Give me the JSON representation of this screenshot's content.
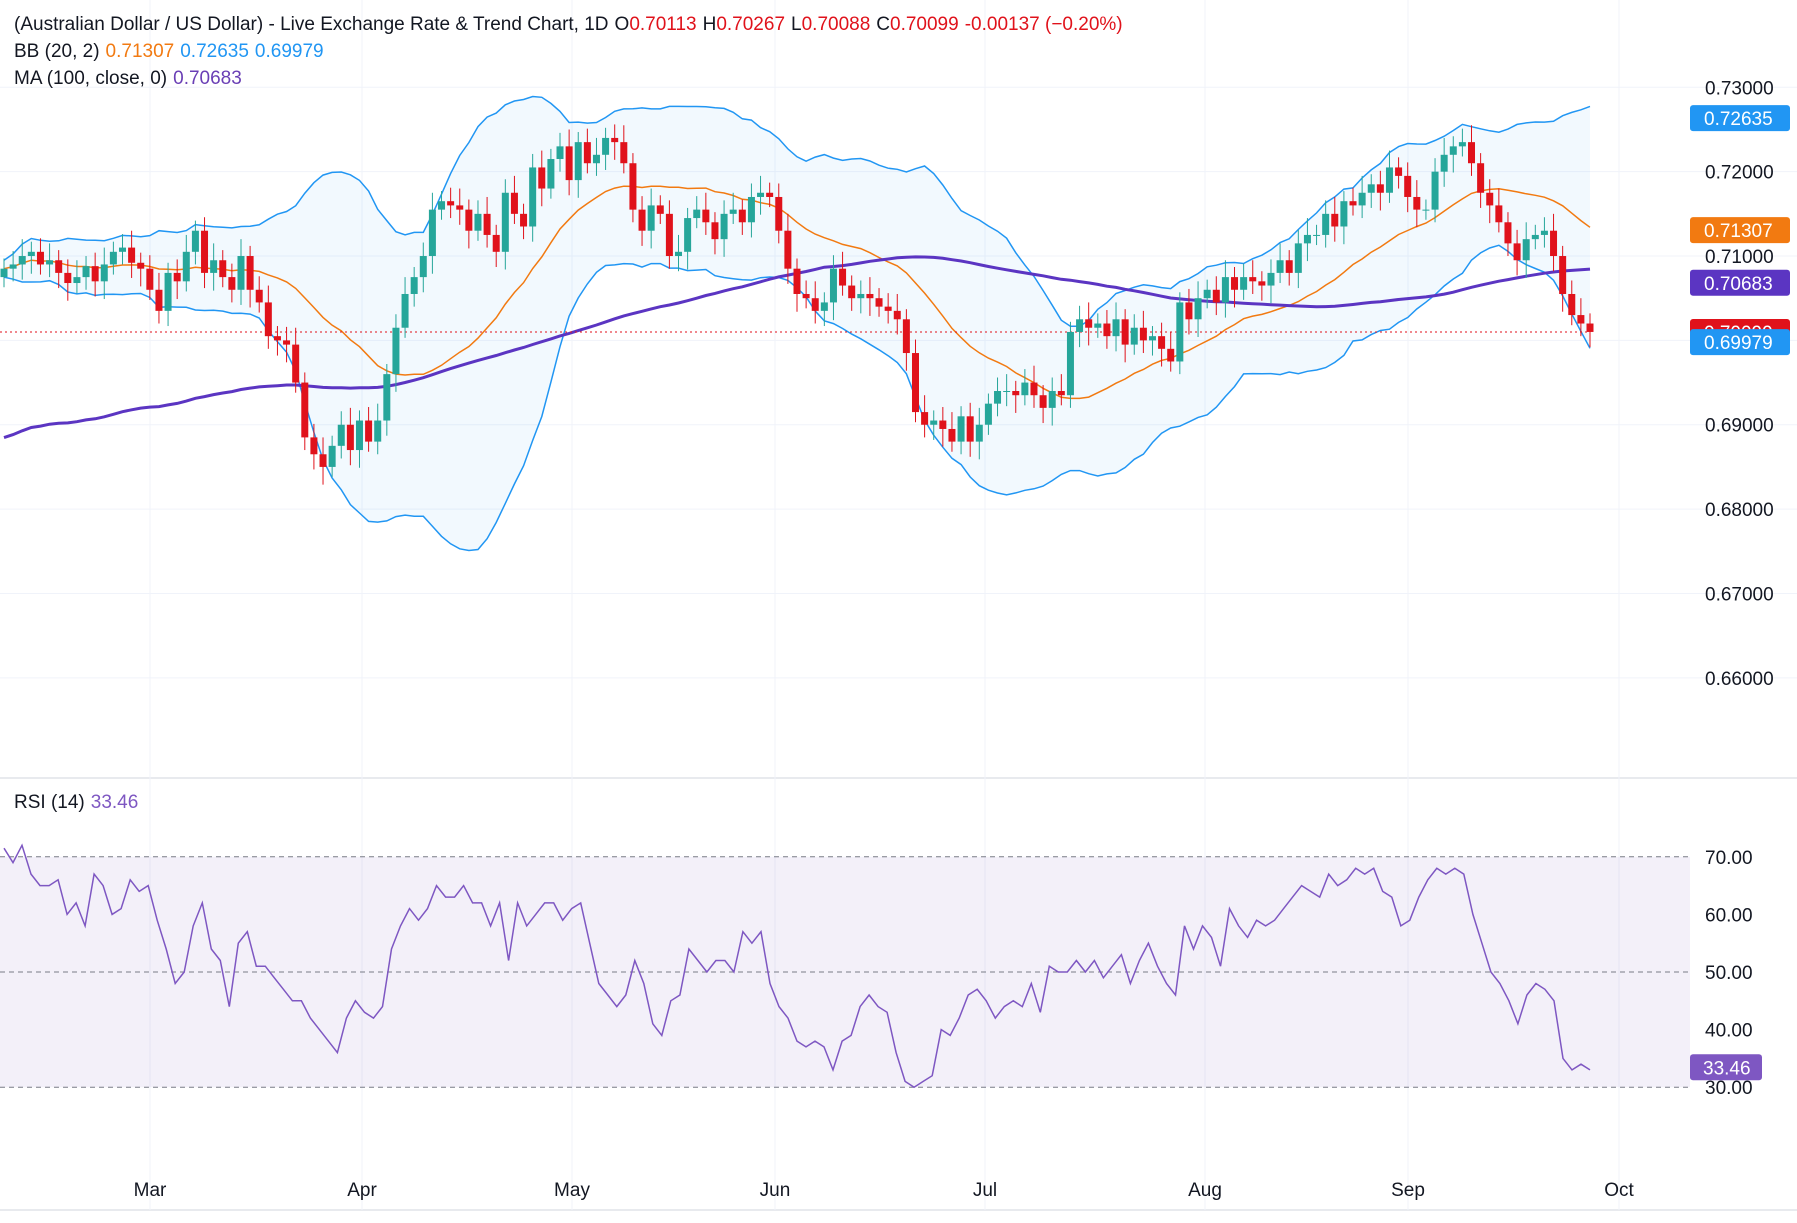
{
  "header": {
    "title": "(Australian Dollar / US Dollar) - Live Exchange Rate & Trend Chart, 1D",
    "open_label": "O",
    "open": "0.70113",
    "high_label": "H",
    "high": "0.70267",
    "low_label": "L",
    "low": "0.70088",
    "close_label": "C",
    "close": "0.70099",
    "change": "-0.00137 (−0.20%)",
    "bb_label": "BB (20, 2)",
    "bb_mid": "0.71307",
    "bb_upper": "0.72635",
    "bb_lower": "0.69979",
    "ma_label": "MA (100, close, 0)",
    "ma_value": "0.70683",
    "rsi_label": "RSI (14)",
    "rsi_value": "33.46"
  },
  "colors": {
    "up": "#26a69a",
    "down": "#e0121b",
    "bb_band": "#2196f3",
    "bb_basis": "#f27a11",
    "ma": "#5b35c2",
    "rsi": "#7e57c2",
    "last_price": "#e0121b"
  },
  "chart_data": [
    {
      "type": "candlestick",
      "title": "(Australian Dollar / US Dollar) - Live Exchange Rate & Trend Chart, 1D",
      "x_ticks": [
        "Mar",
        "Apr",
        "May",
        "Jun",
        "Jul",
        "Aug",
        "Sep",
        "Oct"
      ],
      "ylim": [
        0.655,
        0.733
      ],
      "y_ticks": [
        "0.73000",
        "0.72000",
        "0.71000",
        "0.70000",
        "0.69000",
        "0.68000",
        "0.67000",
        "0.66000"
      ],
      "badges": [
        {
          "label": "0.72635",
          "value": 0.72635,
          "color": "#2196f3"
        },
        {
          "label": "0.71307",
          "value": 0.71307,
          "color": "#f27a11"
        },
        {
          "label": "0.70683",
          "value": 0.70683,
          "color": "#5b35c2"
        },
        {
          "label": "0.70099",
          "value": 0.70099,
          "color": "#e0121b"
        },
        {
          "label": "0.69979",
          "value": 0.69979,
          "color": "#2196f3"
        }
      ],
      "close": [
        0.7085,
        0.709,
        0.71,
        0.7105,
        0.709,
        0.7095,
        0.708,
        0.7068,
        0.7075,
        0.7088,
        0.707,
        0.709,
        0.7105,
        0.711,
        0.7092,
        0.7085,
        0.706,
        0.7035,
        0.708,
        0.707,
        0.7105,
        0.713,
        0.708,
        0.7095,
        0.7075,
        0.706,
        0.71,
        0.706,
        0.7045,
        0.7005,
        0.7,
        0.6995,
        0.695,
        0.6885,
        0.6865,
        0.685,
        0.6875,
        0.69,
        0.687,
        0.6905,
        0.688,
        0.6905,
        0.696,
        0.7015,
        0.7055,
        0.7075,
        0.71,
        0.7155,
        0.7165,
        0.716,
        0.7155,
        0.713,
        0.715,
        0.7125,
        0.7105,
        0.7175,
        0.715,
        0.7135,
        0.7205,
        0.718,
        0.7215,
        0.723,
        0.719,
        0.7235,
        0.721,
        0.722,
        0.724,
        0.7235,
        0.721,
        0.7155,
        0.713,
        0.716,
        0.715,
        0.71,
        0.7105,
        0.7145,
        0.7155,
        0.714,
        0.712,
        0.715,
        0.7155,
        0.714,
        0.717,
        0.7175,
        0.717,
        0.713,
        0.7085,
        0.7055,
        0.705,
        0.7035,
        0.7045,
        0.7085,
        0.7065,
        0.705,
        0.7055,
        0.705,
        0.704,
        0.7035,
        0.7025,
        0.6985,
        0.6915,
        0.69,
        0.6905,
        0.6895,
        0.688,
        0.691,
        0.688,
        0.69,
        0.6925,
        0.694,
        0.694,
        0.6935,
        0.695,
        0.6935,
        0.692,
        0.694,
        0.6935,
        0.701,
        0.7025,
        0.7015,
        0.702,
        0.7005,
        0.7025,
        0.6995,
        0.7015,
        0.7,
        0.7005,
        0.699,
        0.6975,
        0.7045,
        0.7025,
        0.705,
        0.706,
        0.7045,
        0.7075,
        0.706,
        0.7075,
        0.707,
        0.7065,
        0.708,
        0.7095,
        0.708,
        0.7115,
        0.7125,
        0.7125,
        0.715,
        0.7135,
        0.7165,
        0.716,
        0.7175,
        0.7185,
        0.7175,
        0.7205,
        0.7195,
        0.717,
        0.7155,
        0.7155,
        0.72,
        0.722,
        0.723,
        0.7235,
        0.721,
        0.7175,
        0.716,
        0.714,
        0.7115,
        0.7095,
        0.712,
        0.7125,
        0.713,
        0.71,
        0.7055,
        0.703,
        0.702,
        0.701
      ],
      "series": [
        {
          "name": "BB (20, 2)",
          "values": []
        },
        {
          "name": "MA (100, close, 0)",
          "values": []
        }
      ]
    },
    {
      "type": "line",
      "title": "RSI (14)",
      "ylim": [
        25,
        75
      ],
      "y_ticks": [
        "70.00",
        "60.00",
        "50.00",
        "40.00",
        "30.00"
      ],
      "badge": {
        "label": "33.46",
        "value": 33.46,
        "color": "#7e57c2"
      },
      "values": [
        71.5,
        69,
        72,
        67,
        65,
        65,
        66,
        60,
        62,
        58,
        67,
        65,
        60,
        61,
        66,
        64,
        65,
        59,
        54,
        48,
        50,
        58,
        62,
        54,
        52,
        44,
        55,
        57,
        51,
        51,
        49,
        47,
        45,
        45,
        42,
        40,
        38,
        36,
        42,
        45,
        43,
        42,
        44,
        54,
        58,
        61,
        59,
        61,
        65,
        63,
        63,
        65,
        62,
        62,
        58,
        62,
        52,
        62,
        58,
        60,
        62,
        62,
        59,
        61,
        62,
        55,
        48,
        46,
        44,
        46,
        52,
        48,
        41,
        39,
        45,
        46,
        54,
        52,
        50,
        52,
        52,
        50,
        57,
        55,
        57,
        48,
        44,
        42,
        38,
        37,
        38,
        37,
        33,
        38,
        39,
        44,
        46,
        44,
        43,
        36,
        31,
        30,
        31,
        32,
        40,
        39,
        42,
        46,
        47,
        45,
        42,
        44,
        45,
        44,
        48,
        43,
        51,
        50,
        50,
        52,
        50,
        52,
        49,
        51,
        53,
        48,
        52,
        55,
        51,
        48,
        46,
        58,
        54,
        58,
        56,
        51,
        61,
        58,
        56,
        59,
        58,
        59,
        61,
        63,
        65,
        64,
        63,
        67,
        65,
        66,
        68,
        67,
        68,
        64,
        63,
        58,
        59,
        63,
        66,
        68,
        67,
        68,
        67,
        60,
        55,
        50,
        48,
        45,
        41,
        46,
        48,
        47,
        45,
        35,
        33,
        34,
        33
      ],
      "series": [
        {
          "name": "RSI (14)",
          "values": []
        }
      ]
    }
  ]
}
